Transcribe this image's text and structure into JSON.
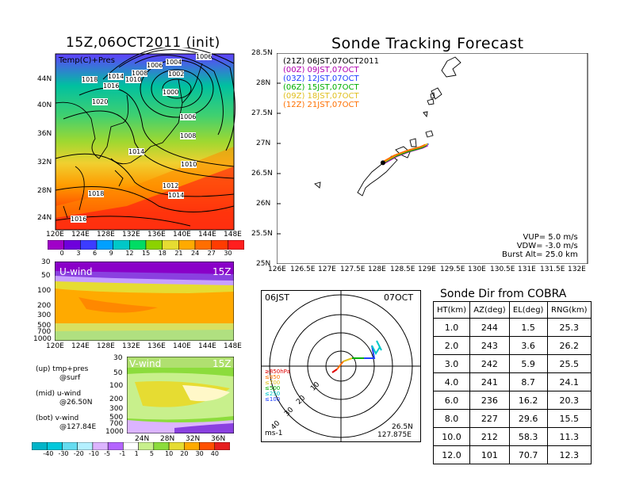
{
  "left_title": "15Z,06OCT2011 (init)",
  "main_title": "Sonde Tracking Forecast",
  "surface_panel": {
    "label": "Temp(C)+Pres",
    "lat_labels": [
      "44N",
      "40N",
      "36N",
      "32N",
      "28N",
      "24N"
    ],
    "lon_labels": [
      "120E",
      "124E",
      "128E",
      "132E",
      "136E",
      "140E",
      "144E",
      "148E"
    ],
    "isobar_labels": [
      "1006",
      "1004",
      "1008",
      "1006",
      "1010",
      "1018",
      "1014",
      "1016",
      "1002",
      "1000",
      "1020",
      "1006",
      "1008",
      "1014",
      "1010",
      "1012",
      "1014",
      "1018",
      "1016"
    ],
    "colorbar_values": [
      "0",
      "3",
      "6",
      "9",
      "12",
      "15",
      "18",
      "21",
      "24",
      "27",
      "30"
    ],
    "colorbar_colors": [
      "#a000c8",
      "#6e00dc",
      "#3c3cff",
      "#00a0ff",
      "#00c8c8",
      "#00dc64",
      "#8cd200",
      "#e6dc32",
      "#ffaa00",
      "#ff6e00",
      "#ff3c00",
      "#ff1e1e"
    ]
  },
  "uwind_panel": {
    "label": "U-wind",
    "time": "15Z",
    "levels": [
      "30",
      "50",
      "100",
      "200",
      "300",
      "500",
      "700",
      "1000"
    ],
    "lon_labels": [
      "120E",
      "124E",
      "128E",
      "132E",
      "136E",
      "140E",
      "144E",
      "148E"
    ]
  },
  "vwind_panel": {
    "label": "V-wind",
    "time": "15Z",
    "levels": [
      "30",
      "50",
      "100",
      "200",
      "300",
      "500",
      "700",
      "1000"
    ],
    "lat_labels": [
      "24N",
      "28N",
      "32N",
      "36N"
    ],
    "colorbar_values": [
      "-40",
      "-30",
      "-20",
      "-10",
      "-5",
      "-1",
      "1",
      "5",
      "10",
      "20",
      "30",
      "40"
    ],
    "colorbar_colors": [
      "#00b4c8",
      "#00c8dc",
      "#64dcf0",
      "#b4f0ff",
      "#dcb4ff",
      "#b464ff",
      "#ffffff",
      "#c8f08c",
      "#8cdc3c",
      "#e6dc32",
      "#ffaa00",
      "#ff5000",
      "#e61e1e"
    ]
  },
  "legend_notes": [
    "(up) tmp+pres",
    "@surf",
    "(mid) u-wind",
    "@26.50N",
    "(bot) v-wind",
    "@127.84E"
  ],
  "track_map": {
    "lat_labels": [
      "28.5N",
      "28N",
      "27.5N",
      "27N",
      "26.5N",
      "26N",
      "25.5N",
      "25N"
    ],
    "lon_labels": [
      "126E",
      "126.5E",
      "127E",
      "127.5E",
      "128E",
      "128.5E",
      "129E",
      "129.5E",
      "130E",
      "130.5E",
      "131E",
      "131.5E",
      "132E"
    ],
    "times": [
      {
        "text": "(21Z)  06JST,07OCT2011",
        "color": "#000000"
      },
      {
        "text": "(00Z)  09JST,07OCT",
        "color": "#b000b0"
      },
      {
        "text": "(03Z)  12JST,07OCT",
        "color": "#2040ff"
      },
      {
        "text": "(06Z)  15JST,07OCT",
        "color": "#00b000"
      },
      {
        "text": "(09Z)  18JST,07OCT",
        "color": "#e0c020"
      },
      {
        "text": "(12Z)  21JST,07OCT",
        "color": "#ff7000"
      }
    ],
    "params": [
      "VUP=  5.0  m/s",
      "VDW= -3.0  m/s",
      "Burst Alt=  25.0  km"
    ]
  },
  "polar_panel": {
    "time_left": "06JST",
    "time_right": "07OCT",
    "ring_labels": [
      "10",
      "20",
      "30",
      "40"
    ],
    "units": "ms-1",
    "location": [
      "26.5N",
      "127.875E"
    ],
    "level_legend": [
      {
        "text": "≥850hPa",
        "color": "#e00000"
      },
      {
        "text": "≤850",
        "color": "#ff7000"
      },
      {
        "text": "≤700",
        "color": "#e0c020"
      },
      {
        "text": "≤500",
        "color": "#00b000"
      },
      {
        "text": "≤250",
        "color": "#00c8c8"
      },
      {
        "text": "≤100",
        "color": "#2040ff"
      }
    ]
  },
  "sonde_table": {
    "title": "Sonde Dir from COBRA",
    "headers": [
      "HT(km)",
      "AZ(deg)",
      "EL(deg)",
      "RNG(km)"
    ],
    "rows": [
      [
        "1.0",
        "244",
        "1.5",
        "25.3"
      ],
      [
        "2.0",
        "243",
        "3.6",
        "26.2"
      ],
      [
        "3.0",
        "242",
        "5.9",
        "25.5"
      ],
      [
        "4.0",
        "241",
        "8.7",
        "24.1"
      ],
      [
        "6.0",
        "236",
        "16.2",
        "20.3"
      ],
      [
        "8.0",
        "227",
        "29.6",
        "15.5"
      ],
      [
        "10.0",
        "212",
        "58.3",
        "11.3"
      ],
      [
        "12.0",
        "101",
        "70.7",
        "12.3"
      ]
    ]
  },
  "chart_data": [
    {
      "type": "table",
      "title": "Sonde Dir from COBRA",
      "columns": [
        "HT(km)",
        "AZ(deg)",
        "EL(deg)",
        "RNG(km)"
      ],
      "rows": [
        [
          1.0,
          244,
          1.5,
          25.3
        ],
        [
          2.0,
          243,
          3.6,
          26.2
        ],
        [
          3.0,
          242,
          5.9,
          25.5
        ],
        [
          4.0,
          241,
          8.7,
          24.1
        ],
        [
          6.0,
          236,
          16.2,
          20.3
        ],
        [
          8.0,
          227,
          29.6,
          15.5
        ],
        [
          10.0,
          212,
          58.3,
          11.3
        ],
        [
          12.0,
          101,
          70.7,
          12.3
        ]
      ]
    },
    {
      "type": "line",
      "title": "Sonde Tracking Forecast",
      "xlim": [
        126,
        132
      ],
      "ylim": [
        25,
        28.5
      ],
      "series": [
        {
          "name": "(21Z)",
          "x": [
            128.05,
            128.3,
            128.55,
            128.8,
            128.9
          ],
          "y": [
            26.68,
            26.8,
            26.88,
            26.94,
            26.98
          ]
        }
      ]
    }
  ]
}
